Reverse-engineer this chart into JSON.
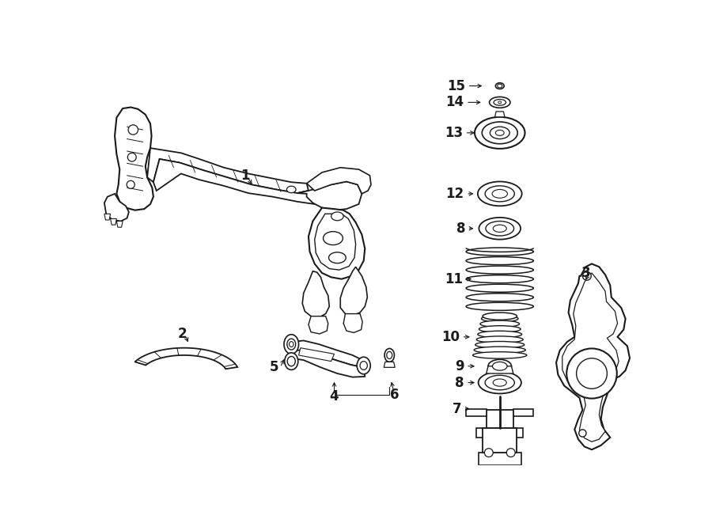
{
  "bg": "#ffffff",
  "lc": "#1a1a1a",
  "lw": 1.2,
  "fig_w": 9.0,
  "fig_h": 6.61,
  "dpi": 100
}
